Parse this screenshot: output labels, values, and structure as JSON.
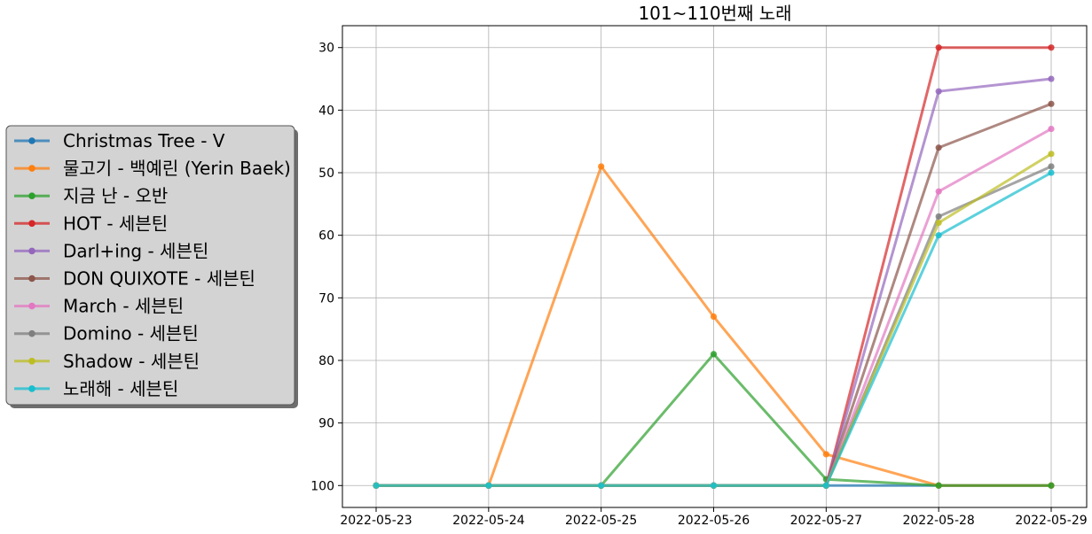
{
  "chart_data": {
    "type": "line",
    "title": "101~110번째 노래",
    "xlabel": "",
    "ylabel": "",
    "x": [
      "2022-05-23",
      "2022-05-24",
      "2022-05-25",
      "2022-05-26",
      "2022-05-27",
      "2022-05-28",
      "2022-05-29"
    ],
    "yticks": [
      30,
      40,
      50,
      60,
      70,
      80,
      90,
      100
    ],
    "ylim": [
      103.5,
      26.5
    ],
    "y_inverted": true,
    "grid": true,
    "legend_position": "left, outside plot",
    "series": [
      {
        "name": "Christmas Tree - V",
        "color": "#1f77b4",
        "values": [
          100,
          100,
          100,
          100,
          100,
          100,
          100
        ]
      },
      {
        "name": "물고기 - 백예린 (Yerin Baek)",
        "color": "#ff7f0e",
        "values": [
          100,
          100,
          49,
          73,
          95,
          100,
          100
        ]
      },
      {
        "name": "지금 난 - 오반",
        "color": "#2ca02c",
        "values": [
          100,
          100,
          100,
          79,
          99,
          100,
          100
        ]
      },
      {
        "name": "HOT - 세븐틴",
        "color": "#d62728",
        "values": [
          100,
          100,
          100,
          100,
          100,
          30,
          30
        ]
      },
      {
        "name": "Darl+ing - 세븐틴",
        "color": "#9467bd",
        "values": [
          100,
          100,
          100,
          100,
          100,
          37,
          35
        ]
      },
      {
        "name": "DON QUIXOTE - 세븐틴",
        "color": "#8c564b",
        "values": [
          100,
          100,
          100,
          100,
          100,
          46,
          39
        ]
      },
      {
        "name": "March - 세븐틴",
        "color": "#e377c2",
        "values": [
          100,
          100,
          100,
          100,
          100,
          53,
          43
        ]
      },
      {
        "name": "Domino - 세븐틴",
        "color": "#7f7f7f",
        "values": [
          100,
          100,
          100,
          100,
          100,
          57,
          49
        ]
      },
      {
        "name": "Shadow - 세븐틴",
        "color": "#bcbd22",
        "values": [
          100,
          100,
          100,
          100,
          100,
          58,
          47
        ]
      },
      {
        "name": "노래해 - 세븐틴",
        "color": "#17becf",
        "values": [
          100,
          100,
          100,
          100,
          100,
          60,
          50
        ]
      }
    ]
  }
}
